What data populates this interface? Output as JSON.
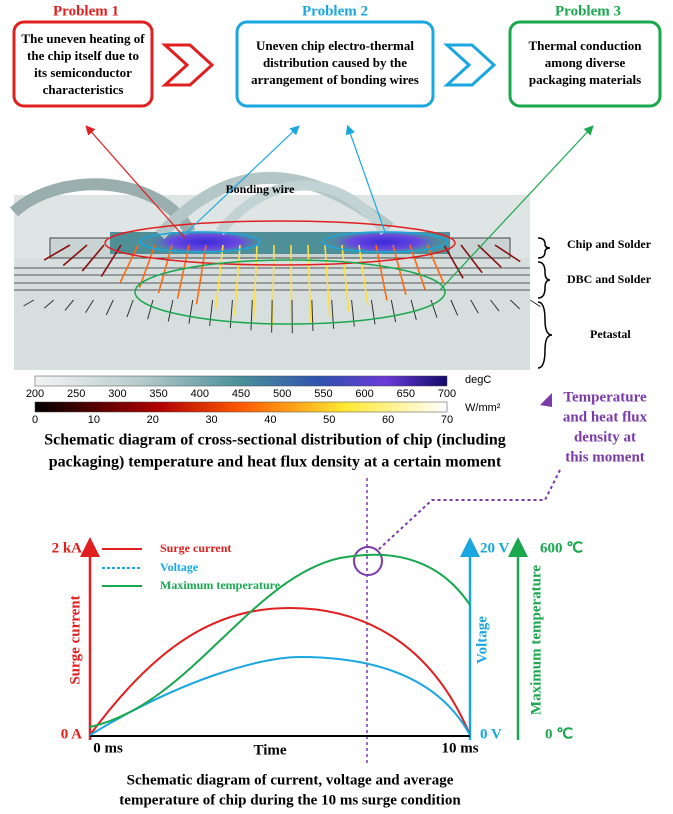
{
  "problems": [
    {
      "title": "Problem 1",
      "lines": [
        "The uneven heating of",
        "the chip itself due to",
        "its semiconductor",
        "characteristics"
      ]
    },
    {
      "title": "Problem 2",
      "lines": [
        "Uneven chip electro-thermal",
        "distribution caused by the",
        "arrangement of bonding wires"
      ]
    },
    {
      "title": "Problem 3",
      "lines": [
        "Thermal conduction",
        "among diverse",
        "packaging materials"
      ]
    }
  ],
  "cross_section": {
    "bonding_wire": "Bonding wire",
    "layers": [
      "Chip and Solder",
      "DBC and Solder",
      "Petastal"
    ],
    "temp_bar": {
      "unit": "degC",
      "ticks": [
        200,
        250,
        300,
        350,
        400,
        450,
        500,
        550,
        600,
        650,
        700
      ]
    },
    "flux_bar": {
      "unit": "W/mm²",
      "ticks": [
        0,
        10,
        20,
        30,
        40,
        50,
        60,
        70
      ]
    },
    "caption": [
      "Schematic diagram of cross-sectional distribution of chip (including",
      "packaging) temperature and heat flux density at a certain moment"
    ]
  },
  "callout": [
    "Temperature",
    "and heat flux",
    "density at",
    "this moment"
  ],
  "waveform": {
    "legend": [
      "Surge current",
      "Voltage",
      "Maximum temperature"
    ],
    "left_axis": {
      "title": "Surge current",
      "top": "2 kA",
      "bottom": "0 A"
    },
    "mid_axis": {
      "title": "Voltage",
      "top": "20 V",
      "bottom": "0 V"
    },
    "right_axis": {
      "title": "Maximum temperature",
      "top": "600 ℃",
      "bottom": "0 ℃"
    },
    "x_start": "0 ms",
    "x_end": "10 ms",
    "x_title": "Time",
    "caption": [
      "Schematic diagram of current, voltage and average",
      "temperature of chip during the 10 ms surge condition"
    ]
  }
}
